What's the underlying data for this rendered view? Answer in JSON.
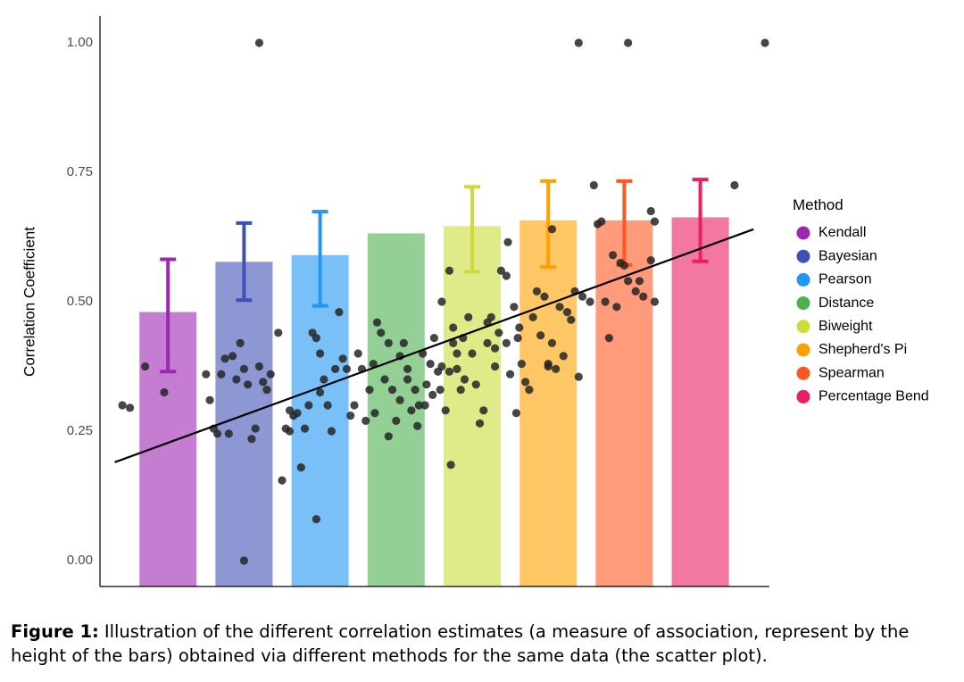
{
  "chart_data": {
    "type": "bar",
    "ylabel": "Correlation Coefficient",
    "xlabel": "",
    "ylim": [
      -0.05,
      1.05
    ],
    "yticks": [
      0.0,
      0.25,
      0.5,
      0.75,
      1.0
    ],
    "ytick_labels": [
      "0.00",
      "0.25",
      "0.50",
      "0.75",
      "1.00"
    ],
    "grid": false,
    "legend": {
      "title": "Method",
      "position": "right",
      "entries": [
        "Kendall",
        "Bayesian",
        "Pearson",
        "Distance",
        "Biweight",
        "Shepherd's Pi",
        "Spearman",
        "Percentage Bend"
      ]
    },
    "categories": [
      "Kendall",
      "Bayesian",
      "Pearson",
      "Distance",
      "Biweight",
      "Shepherd's Pi",
      "Spearman",
      "Percentage Bend"
    ],
    "values": [
      0.48,
      0.577,
      0.59,
      0.632,
      0.646,
      0.657,
      0.657,
      0.663
    ],
    "error_bars": [
      [
        0.365,
        0.582
      ],
      [
        0.503,
        0.652
      ],
      [
        0.492,
        0.674
      ],
      null,
      [
        0.558,
        0.722
      ],
      [
        0.567,
        0.733
      ],
      [
        0.571,
        0.733
      ],
      [
        0.578,
        0.736
      ]
    ],
    "colors": [
      "#9c27b0",
      "#3f51b5",
      "#2196f3",
      "#4caf50",
      "#cddc39",
      "#ffa000",
      "#ff5722",
      "#e91e63"
    ],
    "bar_fill_opacity": 0.6,
    "trend_line": {
      "start": [
        0.3,
        0.19
      ],
      "end": [
        8.7,
        0.64
      ]
    },
    "points": [
      [
        0.4,
        0.3
      ],
      [
        0.5,
        0.295
      ],
      [
        0.7,
        0.375
      ],
      [
        0.95,
        0.325
      ],
      [
        1.5,
        0.36
      ],
      [
        1.55,
        0.31
      ],
      [
        1.6,
        0.255
      ],
      [
        1.65,
        0.245
      ],
      [
        1.75,
        0.39
      ],
      [
        1.85,
        0.395
      ],
      [
        1.95,
        0.42
      ],
      [
        1.7,
        0.36
      ],
      [
        1.8,
        0.245
      ],
      [
        1.9,
        0.35
      ],
      [
        2.0,
        0.37
      ],
      [
        2.05,
        0.34
      ],
      [
        2.15,
        0.255
      ],
      [
        2.2,
        0.375
      ],
      [
        2.25,
        0.345
      ],
      [
        2.3,
        0.33
      ],
      [
        2.35,
        0.36
      ],
      [
        2.1,
        0.235
      ],
      [
        2.0,
        0.0
      ],
      [
        2.45,
        0.44
      ],
      [
        2.55,
        0.255
      ],
      [
        2.6,
        0.25
      ],
      [
        2.65,
        0.28
      ],
      [
        2.7,
        0.285
      ],
      [
        2.75,
        0.18
      ],
      [
        2.5,
        0.155
      ],
      [
        2.6,
        0.29
      ],
      [
        2.8,
        0.255
      ],
      [
        2.85,
        0.3
      ],
      [
        2.9,
        0.44
      ],
      [
        2.95,
        0.43
      ],
      [
        3.0,
        0.4
      ],
      [
        3.05,
        0.35
      ],
      [
        3.1,
        0.3
      ],
      [
        3.15,
        0.25
      ],
      [
        3.2,
        0.37
      ],
      [
        3.25,
        0.48
      ],
      [
        3.3,
        0.39
      ],
      [
        2.95,
        0.08
      ],
      [
        3.0,
        0.325
      ],
      [
        3.35,
        0.37
      ],
      [
        3.4,
        0.28
      ],
      [
        3.45,
        0.3
      ],
      [
        3.5,
        0.4
      ],
      [
        3.55,
        0.37
      ],
      [
        3.6,
        0.27
      ],
      [
        3.65,
        0.33
      ],
      [
        3.7,
        0.38
      ],
      [
        3.75,
        0.46
      ],
      [
        3.8,
        0.44
      ],
      [
        3.85,
        0.35
      ],
      [
        3.9,
        0.42
      ],
      [
        3.95,
        0.33
      ],
      [
        3.72,
        0.285
      ],
      [
        3.9,
        0.24
      ],
      [
        4.0,
        0.27
      ],
      [
        4.05,
        0.395
      ],
      [
        4.1,
        0.42
      ],
      [
        4.15,
        0.35
      ],
      [
        4.2,
        0.29
      ],
      [
        4.25,
        0.33
      ],
      [
        4.3,
        0.3
      ],
      [
        4.35,
        0.4
      ],
      [
        4.4,
        0.34
      ],
      [
        4.45,
        0.38
      ],
      [
        4.5,
        0.43
      ],
      [
        4.55,
        0.365
      ],
      [
        4.6,
        0.5
      ],
      [
        4.7,
        0.365
      ],
      [
        4.75,
        0.42
      ],
      [
        4.05,
        0.31
      ],
      [
        4.15,
        0.37
      ],
      [
        4.28,
        0.26
      ],
      [
        4.38,
        0.3
      ],
      [
        4.48,
        0.32
      ],
      [
        4.58,
        0.33
      ],
      [
        4.6,
        0.375
      ],
      [
        4.65,
        0.29
      ],
      [
        4.7,
        0.56
      ],
      [
        4.75,
        0.45
      ],
      [
        4.8,
        0.4
      ],
      [
        4.85,
        0.33
      ],
      [
        4.9,
        0.35
      ],
      [
        4.95,
        0.47
      ],
      [
        5.0,
        0.4
      ],
      [
        4.88,
        0.43
      ],
      [
        4.72,
        0.185
      ],
      [
        4.8,
        0.37
      ],
      [
        5.05,
        0.34
      ],
      [
        5.1,
        0.265
      ],
      [
        5.15,
        0.29
      ],
      [
        5.2,
        0.42
      ],
      [
        5.25,
        0.47
      ],
      [
        5.3,
        0.375
      ],
      [
        5.35,
        0.44
      ],
      [
        5.38,
        0.56
      ],
      [
        5.45,
        0.55
      ],
      [
        5.45,
        0.42
      ],
      [
        5.5,
        0.36
      ],
      [
        5.55,
        0.49
      ],
      [
        5.6,
        0.43
      ],
      [
        5.65,
        0.38
      ],
      [
        5.7,
        0.345
      ],
      [
        5.75,
        0.33
      ],
      [
        5.8,
        0.47
      ],
      [
        5.58,
        0.285
      ],
      [
        5.47,
        0.615
      ],
      [
        5.2,
        0.46
      ],
      [
        5.3,
        0.41
      ],
      [
        5.62,
        0.45
      ],
      [
        5.85,
        0.52
      ],
      [
        5.9,
        0.435
      ],
      [
        5.95,
        0.51
      ],
      [
        6.0,
        0.38
      ],
      [
        6.05,
        0.42
      ],
      [
        6.1,
        0.37
      ],
      [
        6.15,
        0.49
      ],
      [
        6.2,
        0.395
      ],
      [
        6.25,
        0.48
      ],
      [
        6.3,
        0.465
      ],
      [
        6.35,
        0.52
      ],
      [
        6.4,
        0.355
      ],
      [
        6.45,
        0.51
      ],
      [
        6.55,
        0.5
      ],
      [
        6.6,
        0.725
      ],
      [
        6.65,
        0.65
      ],
      [
        6.7,
        0.655
      ],
      [
        6.75,
        0.5
      ],
      [
        6.8,
        0.43
      ],
      [
        6.85,
        0.59
      ],
      [
        6.9,
        0.49
      ],
      [
        6.95,
        0.575
      ],
      [
        7.0,
        0.57
      ],
      [
        7.05,
        0.54
      ],
      [
        6.05,
        0.64
      ],
      [
        6.0,
        0.375
      ],
      [
        7.15,
        0.52
      ],
      [
        7.2,
        0.54
      ],
      [
        7.25,
        0.51
      ],
      [
        7.35,
        0.58
      ],
      [
        7.4,
        0.5
      ],
      [
        7.35,
        0.675
      ],
      [
        7.4,
        0.655
      ],
      [
        8.45,
        0.725
      ],
      [
        2.2,
        1.0
      ],
      [
        6.4,
        1.0
      ],
      [
        7.05,
        1.0
      ],
      [
        8.85,
        1.0
      ]
    ]
  },
  "caption": {
    "lead": "Figure 1:",
    "text": "Illustration of the different correlation estimates (a measure of association, represent by the height of the bars) obtained via different methods for the same data (the scatter plot)."
  }
}
